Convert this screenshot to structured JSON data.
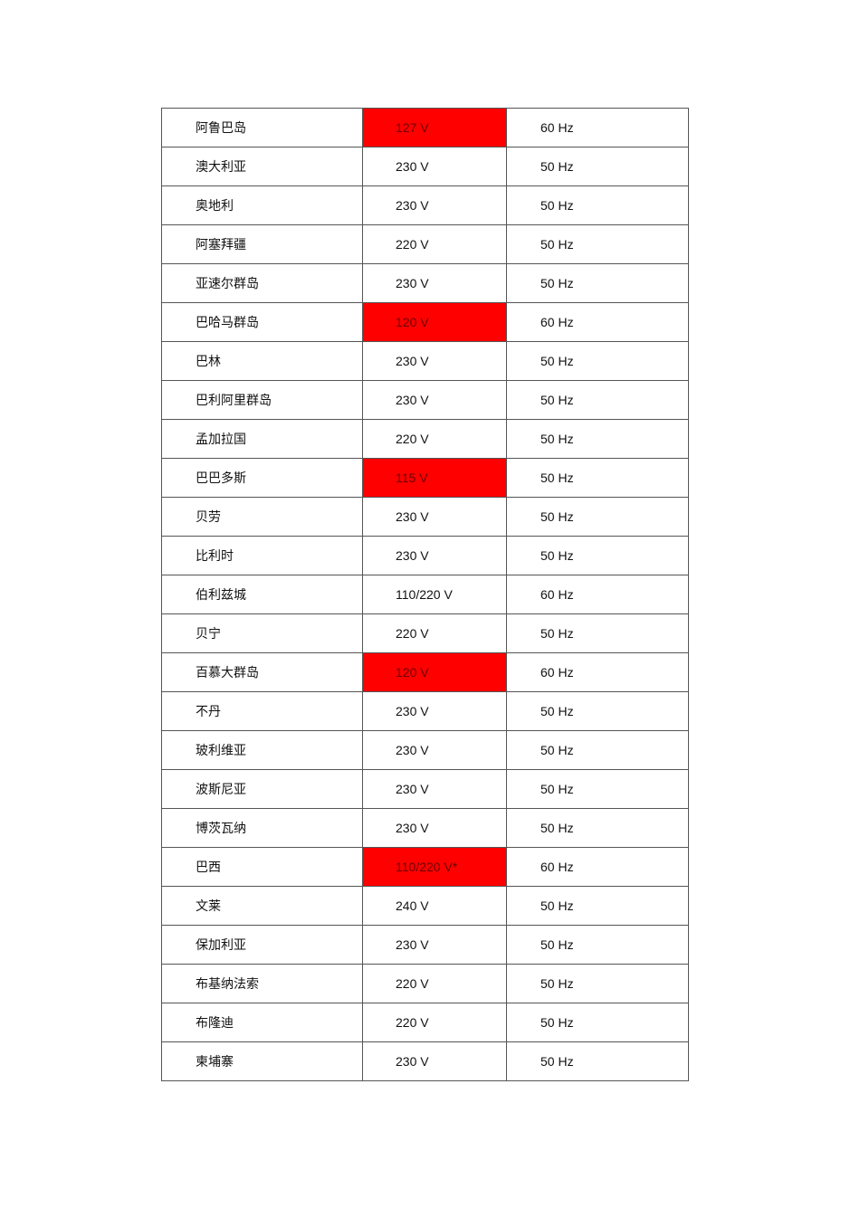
{
  "highlight_color": "#ff0000",
  "rows": [
    {
      "country": "阿鲁巴岛",
      "voltage": "127 V",
      "frequency": "60 Hz",
      "highlight": true
    },
    {
      "country": "澳大利亚",
      "voltage": "230 V",
      "frequency": "50 Hz",
      "highlight": false
    },
    {
      "country": "奥地利",
      "voltage": "230 V",
      "frequency": "50 Hz",
      "highlight": false
    },
    {
      "country": "阿塞拜疆",
      "voltage": "220 V",
      "frequency": "50 Hz",
      "highlight": false
    },
    {
      "country": "亚速尔群岛",
      "voltage": "230 V",
      "frequency": "50 Hz",
      "highlight": false
    },
    {
      "country": "巴哈马群岛",
      "voltage": "120 V",
      "frequency": "60 Hz",
      "highlight": true
    },
    {
      "country": "巴林",
      "voltage": "230 V",
      "frequency": "50 Hz",
      "highlight": false
    },
    {
      "country": "巴利阿里群岛",
      "voltage": "230 V",
      "frequency": "50 Hz",
      "highlight": false
    },
    {
      "country": "孟加拉国",
      "voltage": "220 V",
      "frequency": "50 Hz",
      "highlight": false
    },
    {
      "country": "巴巴多斯",
      "voltage": "115 V",
      "frequency": "50 Hz",
      "highlight": true
    },
    {
      "country": "贝劳",
      "voltage": "230 V",
      "frequency": "50 Hz",
      "highlight": false
    },
    {
      "country": "比利时",
      "voltage": "230 V",
      "frequency": "50 Hz",
      "highlight": false
    },
    {
      "country": "伯利兹城",
      "voltage": "110/220 V",
      "frequency": "60 Hz",
      "highlight": false
    },
    {
      "country": "贝宁",
      "voltage": "220 V",
      "frequency": "50 Hz",
      "highlight": false
    },
    {
      "country": "百慕大群岛",
      "voltage": "120 V",
      "frequency": "60 Hz",
      "highlight": true
    },
    {
      "country": "不丹",
      "voltage": "230 V",
      "frequency": "50 Hz",
      "highlight": false
    },
    {
      "country": "玻利维亚",
      "voltage": "230 V",
      "frequency": "50 Hz",
      "highlight": false
    },
    {
      "country": "波斯尼亚",
      "voltage": "230 V",
      "frequency": "50 Hz",
      "highlight": false
    },
    {
      "country": "博茨瓦纳",
      "voltage": "230 V",
      "frequency": "50 Hz",
      "highlight": false
    },
    {
      "country": "巴西",
      "voltage": "110/220 V*",
      "frequency": "60 Hz",
      "highlight": true
    },
    {
      "country": "文莱",
      "voltage": "240 V",
      "frequency": "50 Hz",
      "highlight": false
    },
    {
      "country": "保加利亚",
      "voltage": "230 V",
      "frequency": "50 Hz",
      "highlight": false
    },
    {
      "country": "布基纳法索",
      "voltage": "220 V",
      "frequency": "50 Hz",
      "highlight": false
    },
    {
      "country": "布隆迪",
      "voltage": "220 V",
      "frequency": "50 Hz",
      "highlight": false
    },
    {
      "country": "柬埔寨",
      "voltage": "230 V",
      "frequency": "50 Hz",
      "highlight": false
    }
  ]
}
